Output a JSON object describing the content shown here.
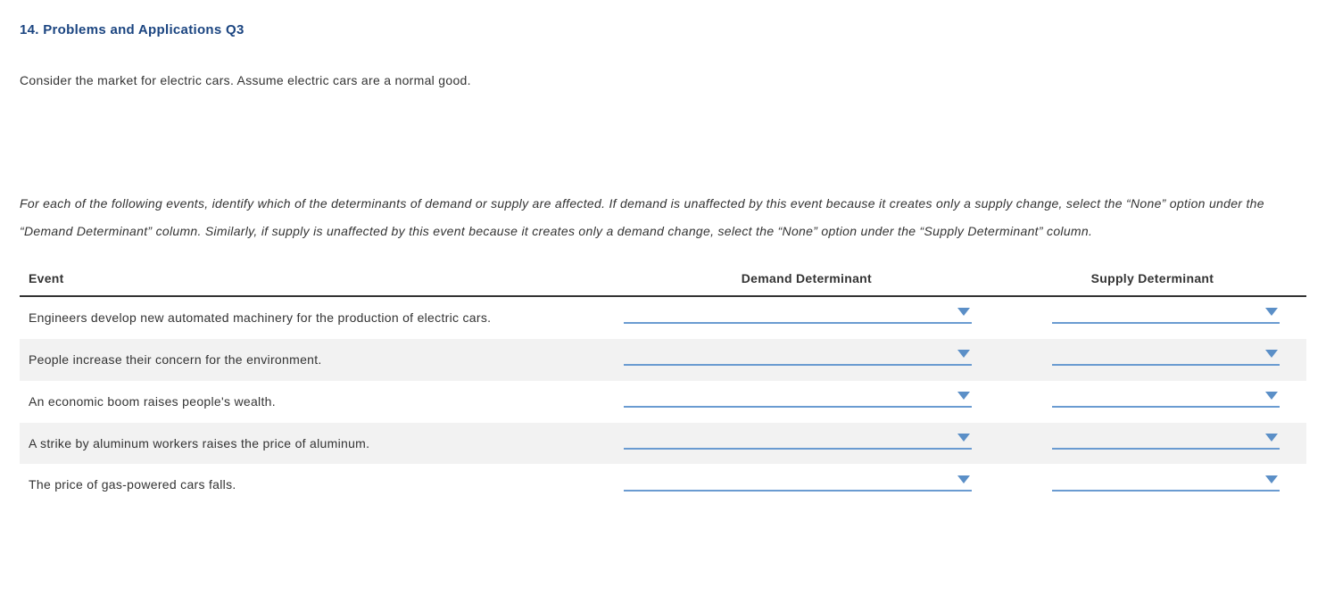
{
  "heading": "14. Problems and Applications Q3",
  "intro": "Consider the market for electric cars. Assume electric cars are a normal good.",
  "instructions": "For each of the following events, identify which of the determinants of demand or supply are affected. If demand is unaffected by this event because it creates only a supply change, select the “None” option under the “Demand Determinant” column. Similarly, if supply is unaffected by this event because it creates only a demand change, select the “None” option under the “Supply Determinant” column.",
  "table": {
    "columns": {
      "event": "Event",
      "demand": "Demand Determinant",
      "supply": "Supply Determinant"
    },
    "rows": [
      {
        "event": "Engineers develop new automated machinery for the production of electric cars.",
        "alt": false
      },
      {
        "event": "People increase their concern for the environment.",
        "alt": true
      },
      {
        "event": "An economic boom raises people's wealth.",
        "alt": false
      },
      {
        "event": "A strike by aluminum workers raises the price of aluminum.",
        "alt": true
      },
      {
        "event": "The price of gas-powered cars falls.",
        "alt": false
      }
    ]
  },
  "style": {
    "heading_color": "#1a4480",
    "dropdown_border_color": "#6a9bd1",
    "dropdown_arrow_color": "#5b8fc7",
    "alt_row_bg": "#f2f2f2",
    "text_color": "#333333"
  }
}
